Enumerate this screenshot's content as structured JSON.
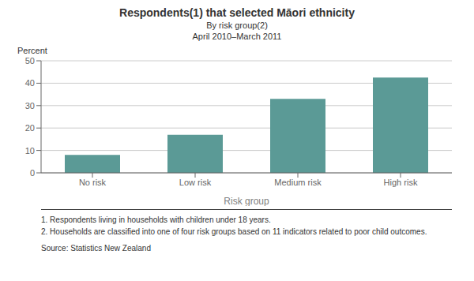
{
  "chart_data": {
    "type": "bar",
    "title": "Respondents(1) that selected Māori ethnicity",
    "subtitle": [
      "By risk group(2)",
      "April 2010–March 2011"
    ],
    "xlabel": "Risk group",
    "ylabel": "Percent",
    "categories": [
      "No risk",
      "Low risk",
      "Medium risk",
      "High risk"
    ],
    "values": [
      8.0,
      17.0,
      33.0,
      42.5
    ],
    "color": "#5b9a96",
    "ylim": [
      0,
      50
    ],
    "yticks": [
      0,
      10,
      20,
      30,
      40,
      50
    ],
    "grid": true,
    "annotations": [
      "1. Respondents living in households with children under 18 years.",
      "2. Households are classified into one of four risk groups based on 11 indicators related to poor child outcomes.",
      "Source: Statistics New Zealand"
    ]
  }
}
